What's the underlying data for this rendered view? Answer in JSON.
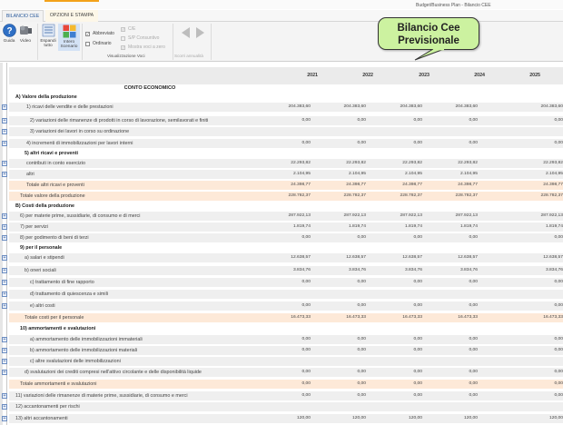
{
  "window": {
    "title": "Budget/Business Plan - Bilancio CEE"
  },
  "tabs": [
    {
      "label": "BILANCIO CEE",
      "active": true
    },
    {
      "label": "OPZIONI E STAMPA",
      "active": false
    }
  ],
  "ribbon": {
    "buttons": {
      "guida": "Guida",
      "video": "Video",
      "espandi_line1": "Espandi",
      "espandi_line2": "tutto",
      "intero_line1": "Intero",
      "intero_line2": "Scenario"
    },
    "checkboxes": {
      "abbreviato": {
        "label": "Abbreviato",
        "checked": true,
        "enabled": true
      },
      "ordinario": {
        "label": "Ordinario",
        "checked": false,
        "enabled": true
      },
      "ce": {
        "label": "C/E",
        "checked": true,
        "enabled": false
      },
      "sp_consuntivo": {
        "label": "S/P Consuntivo",
        "checked": false,
        "enabled": false
      },
      "mostra_voci": {
        "label": "Mostra voci a zero",
        "checked": true,
        "enabled": false
      }
    },
    "groups": {
      "visualizzazione": "Visualizzazione Voci",
      "scorri": "Scorri annualità"
    },
    "icons": {
      "guida": "help-icon",
      "video": "video-camera-icon",
      "espandi": "expand-list-icon",
      "intero": "scenario-grid-icon",
      "prev": "arrow-left-icon",
      "next": "arrow-right-icon"
    }
  },
  "callout": {
    "line1": "Bilancio Cee",
    "line2": "Previsionale",
    "color": "#ccf2a0"
  },
  "table": {
    "section_title": "CONTO ECONOMICO",
    "years": [
      "2021",
      "2022",
      "2023",
      "2024",
      "2025"
    ],
    "rows": [
      {
        "label": "A) Valore della produzione",
        "type": "heading",
        "values": []
      },
      {
        "label": "1) ricavi delle vendite e delle prestazioni",
        "type": "item",
        "values": [
          "204.383,60",
          "204.383,60",
          "204.383,60",
          "204.383,60",
          "204.383,60"
        ]
      },
      {
        "label": "2) variazioni delle rimanenze di prodotti in corso di lavorazione, semilavorati e finiti",
        "type": "item",
        "values": [
          "0,00",
          "0,00",
          "0,00",
          "0,00",
          "0,00"
        ]
      },
      {
        "label": "3) variazioni dei lavori in corso su ordinazione",
        "type": "item",
        "values": []
      },
      {
        "label": "4) incrementi di immobilizzazioni per lavori interni",
        "type": "item",
        "values": [
          "0,00",
          "0,00",
          "0,00",
          "0,00",
          "0,00"
        ]
      },
      {
        "label": "5) altri ricavi e proventi",
        "type": "heading",
        "values": []
      },
      {
        "label": "contributi in conto esercizio",
        "type": "item",
        "values": [
          "22.293,82",
          "22.293,82",
          "22.293,82",
          "22.293,82",
          "22.293,82"
        ]
      },
      {
        "label": "altri",
        "type": "item",
        "values": [
          "2.104,95",
          "2.104,95",
          "2.104,95",
          "2.104,95",
          "2.104,95"
        ]
      },
      {
        "label": "Totale altri ricavi e proventi",
        "type": "total",
        "values": [
          "24.398,77",
          "24.398,77",
          "24.398,77",
          "24.398,77",
          "24.398,77"
        ]
      },
      {
        "label": "Totale valore della produzione",
        "type": "total",
        "values": [
          "228.782,37",
          "228.782,37",
          "228.782,37",
          "228.782,37",
          "228.782,37"
        ]
      },
      {
        "label": "B) Costi della produzione",
        "type": "heading",
        "values": []
      },
      {
        "label": "6) per materie prime, sussidiarie, di consumo e di merci",
        "type": "item",
        "values": [
          "287.922,13",
          "287.922,13",
          "287.922,13",
          "287.922,13",
          "287.922,13"
        ]
      },
      {
        "label": "7) per servizi",
        "type": "item",
        "values": [
          "1.819,74",
          "1.819,74",
          "1.819,74",
          "1.819,74",
          "1.819,74"
        ]
      },
      {
        "label": "8) per godimento di beni di terzi",
        "type": "item",
        "values": [
          "0,00",
          "0,00",
          "0,00",
          "0,00",
          "0,00"
        ]
      },
      {
        "label": "9) per il personale",
        "type": "heading",
        "values": []
      },
      {
        "label": "a) salari e stipendi",
        "type": "item",
        "values": [
          "12.638,57",
          "12.638,57",
          "12.638,57",
          "12.638,57",
          "12.638,57"
        ]
      },
      {
        "label": "b) oneri sociali",
        "type": "item",
        "values": [
          "3.834,76",
          "3.834,76",
          "3.834,76",
          "3.834,76",
          "3.834,76"
        ]
      },
      {
        "label": "c) trattamento di fine rapporto",
        "type": "item",
        "values": [
          "0,00",
          "0,00",
          "0,00",
          "0,00",
          "0,00"
        ]
      },
      {
        "label": "d) trattamento di quiescenza e simili",
        "type": "item",
        "values": []
      },
      {
        "label": "e) altri costi",
        "type": "item",
        "values": [
          "0,00",
          "0,00",
          "0,00",
          "0,00",
          "0,00"
        ]
      },
      {
        "label": "Totale costi per il personale",
        "type": "total",
        "values": [
          "16.473,33",
          "16.473,33",
          "16.473,33",
          "16.473,33",
          "16.473,33"
        ]
      },
      {
        "label": "10) ammortamenti e svalutazioni",
        "type": "heading",
        "values": []
      },
      {
        "label": "a) ammortamento delle immobilizzazioni immateriali",
        "type": "item",
        "values": [
          "0,00",
          "0,00",
          "0,00",
          "0,00",
          "0,00"
        ]
      },
      {
        "label": "b) ammortamento delle immobilizzazioni materiali",
        "type": "item",
        "values": [
          "0,00",
          "0,00",
          "0,00",
          "0,00",
          "0,00"
        ]
      },
      {
        "label": "c) altre svalutazioni delle immobilizzazioni",
        "type": "item",
        "values": []
      },
      {
        "label": "d) svalutazioni dei crediti compresi nell'attivo circolante e delle disponibilità liquide",
        "type": "item",
        "values": [
          "0,00",
          "0,00",
          "0,00",
          "0,00",
          "0,00"
        ]
      },
      {
        "label": "Totale ammortamenti e svalutazioni",
        "type": "total",
        "values": [
          "0,00",
          "0,00",
          "0,00",
          "0,00",
          "0,00"
        ]
      },
      {
        "label": "11) variazioni delle rimanenze di materie prime, sussidiarie, di consumo e merci",
        "type": "item",
        "values": [
          "0,00",
          "0,00",
          "0,00",
          "0,00",
          "0,00"
        ]
      },
      {
        "label": "12) accantonamenti per rischi",
        "type": "item",
        "values": []
      },
      {
        "label": "13) altri accantonamenti",
        "type": "item",
        "values": [
          "120,00",
          "120,00",
          "120,00",
          "120,00",
          "120,00"
        ]
      }
    ]
  },
  "colors": {
    "total_row_bg": "#fde9d8",
    "item_row_bg": "#efefef",
    "tab_accent": "#f3a21a",
    "active_tab_text": "#2a5a9c"
  }
}
